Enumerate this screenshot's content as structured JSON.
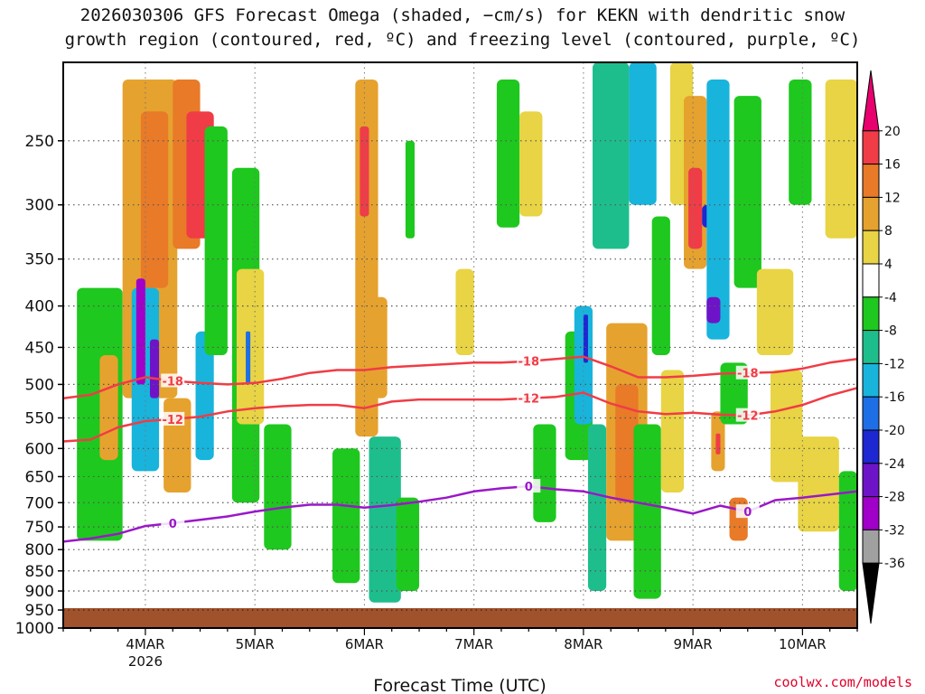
{
  "title_line1": "2026030306 GFS Forecast Omega (shaded, −cm/s) for KEKN with dendritic snow",
  "title_line2": "growth region (contoured, red, ºC) and freezing level (contoured, purple, ºC)",
  "credit": "coolwx.com/models",
  "chart_data": {
    "type": "heatmap",
    "title": "2026030306 GFS Forecast Omega (shaded, −cm/s) for KEKN with dendritic snow growth region (contoured, red, ºC) and freezing level (contoured, purple, ºC)",
    "xlabel": "Forecast Time (UTC)",
    "ylabel": "",
    "x_unit": "forecast hour",
    "xlim": [
      0,
      174
    ],
    "x_ticks": [
      {
        "hour": 18,
        "label": "4MAR",
        "sublabel": "2026"
      },
      {
        "hour": 42,
        "label": "5MAR"
      },
      {
        "hour": 66,
        "label": "6MAR"
      },
      {
        "hour": 90,
        "label": "7MAR"
      },
      {
        "hour": 114,
        "label": "8MAR"
      },
      {
        "hour": 138,
        "label": "9MAR"
      },
      {
        "hour": 162,
        "label": "10MAR"
      }
    ],
    "y_unit": "hPa",
    "ylim": [
      1000,
      200
    ],
    "y_ticks": [
      "250",
      "300",
      "350",
      "400",
      "450",
      "500",
      "550",
      "600",
      "650",
      "700",
      "750",
      "800",
      "850",
      "900",
      "950",
      "1000"
    ],
    "grid": true,
    "colorbar": {
      "labels": [
        "20",
        "16",
        "12",
        "8",
        "4",
        "-4",
        "-8",
        "-12",
        "-16",
        "-20",
        "-24",
        "-28",
        "-32",
        "-36"
      ],
      "colors": [
        "#e8006e",
        "#f03c46",
        "#e87a28",
        "#e6a22e",
        "#e8d444",
        "#ffffff",
        "#1ec81e",
        "#1ebe8c",
        "#18b4dc",
        "#1e6ee6",
        "#1e28d2",
        "#6e14c8",
        "#a000c8",
        "#a0a0a0",
        "#000000"
      ]
    },
    "ground_level_hpa": 945,
    "ground_color": "#a0522d",
    "contours": [
      {
        "name": "-18 C",
        "label": "-18",
        "color": "#f03c46",
        "points": [
          [
            0,
            520
          ],
          [
            6,
            515
          ],
          [
            12,
            500
          ],
          [
            18,
            490
          ],
          [
            24,
            495
          ],
          [
            30,
            498
          ],
          [
            36,
            500
          ],
          [
            42,
            498
          ],
          [
            48,
            492
          ],
          [
            54,
            484
          ],
          [
            60,
            480
          ],
          [
            66,
            480
          ],
          [
            72,
            476
          ],
          [
            78,
            474
          ],
          [
            84,
            472
          ],
          [
            90,
            470
          ],
          [
            96,
            470
          ],
          [
            102,
            468
          ],
          [
            108,
            465
          ],
          [
            114,
            462
          ],
          [
            120,
            475
          ],
          [
            126,
            490
          ],
          [
            132,
            490
          ],
          [
            138,
            488
          ],
          [
            144,
            485
          ],
          [
            150,
            484
          ],
          [
            156,
            483
          ],
          [
            162,
            478
          ],
          [
            168,
            470
          ],
          [
            174,
            465
          ]
        ]
      },
      {
        "name": "-12 C",
        "label": "-12",
        "color": "#f03c46",
        "points": [
          [
            0,
            588
          ],
          [
            6,
            585
          ],
          [
            12,
            565
          ],
          [
            18,
            555
          ],
          [
            24,
            552
          ],
          [
            30,
            548
          ],
          [
            36,
            540
          ],
          [
            42,
            535
          ],
          [
            48,
            532
          ],
          [
            54,
            530
          ],
          [
            60,
            530
          ],
          [
            66,
            535
          ],
          [
            72,
            525
          ],
          [
            78,
            522
          ],
          [
            84,
            522
          ],
          [
            90,
            522
          ],
          [
            96,
            522
          ],
          [
            102,
            520
          ],
          [
            108,
            518
          ],
          [
            114,
            512
          ],
          [
            120,
            528
          ],
          [
            126,
            540
          ],
          [
            132,
            544
          ],
          [
            138,
            542
          ],
          [
            144,
            545
          ],
          [
            150,
            546
          ],
          [
            156,
            540
          ],
          [
            162,
            530
          ],
          [
            168,
            516
          ],
          [
            174,
            505
          ]
        ]
      },
      {
        "name": "0 C freezing level",
        "label": "0",
        "color": "#9a18c8",
        "points": [
          [
            0,
            782
          ],
          [
            6,
            775
          ],
          [
            12,
            765
          ],
          [
            18,
            748
          ],
          [
            24,
            742
          ],
          [
            30,
            735
          ],
          [
            36,
            728
          ],
          [
            42,
            718
          ],
          [
            48,
            710
          ],
          [
            54,
            704
          ],
          [
            60,
            704
          ],
          [
            66,
            710
          ],
          [
            72,
            705
          ],
          [
            78,
            698
          ],
          [
            84,
            690
          ],
          [
            90,
            678
          ],
          [
            96,
            672
          ],
          [
            102,
            668
          ],
          [
            108,
            674
          ],
          [
            114,
            678
          ],
          [
            120,
            690
          ],
          [
            126,
            700
          ],
          [
            132,
            710
          ],
          [
            138,
            722
          ],
          [
            144,
            706
          ],
          [
            150,
            718
          ],
          [
            156,
            695
          ],
          [
            162,
            690
          ],
          [
            168,
            684
          ],
          [
            174,
            678
          ]
        ]
      }
    ],
    "omega_cells": [
      {
        "t0": 3,
        "t1": 13,
        "p0": 380,
        "p1": 780,
        "v": -6
      },
      {
        "t0": 8,
        "t1": 12,
        "p0": 460,
        "p1": 620,
        "v": 8
      },
      {
        "t0": 13,
        "t1": 25,
        "p0": 210,
        "p1": 520,
        "v": 8
      },
      {
        "t0": 17,
        "t1": 23,
        "p0": 230,
        "p1": 380,
        "v": 14
      },
      {
        "t0": 15,
        "t1": 21,
        "p0": 380,
        "p1": 640,
        "v": -12
      },
      {
        "t0": 16,
        "t1": 18,
        "p0": 370,
        "p1": 500,
        "v": -28
      },
      {
        "t0": 19,
        "t1": 21,
        "p0": 440,
        "p1": 520,
        "v": -24
      },
      {
        "t0": 22,
        "t1": 28,
        "p0": 520,
        "p1": 680,
        "v": 10
      },
      {
        "t0": 24,
        "t1": 30,
        "p0": 210,
        "p1": 340,
        "v": 12
      },
      {
        "t0": 27,
        "t1": 33,
        "p0": 230,
        "p1": 330,
        "v": 17
      },
      {
        "t0": 29,
        "t1": 33,
        "p0": 430,
        "p1": 620,
        "v": -14
      },
      {
        "t0": 31,
        "t1": 36,
        "p0": 240,
        "p1": 460,
        "v": -6
      },
      {
        "t0": 37,
        "t1": 43,
        "p0": 270,
        "p1": 700,
        "v": -5
      },
      {
        "t0": 38,
        "t1": 44,
        "p0": 360,
        "p1": 560,
        "v": 5
      },
      {
        "t0": 40,
        "t1": 41,
        "p0": 430,
        "p1": 500,
        "v": -18
      },
      {
        "t0": 44,
        "t1": 50,
        "p0": 560,
        "p1": 800,
        "v": -5
      },
      {
        "t0": 59,
        "t1": 65,
        "p0": 600,
        "p1": 880,
        "v": -6
      },
      {
        "t0": 64,
        "t1": 69,
        "p0": 210,
        "p1": 580,
        "v": 8
      },
      {
        "t0": 65,
        "t1": 67,
        "p0": 240,
        "p1": 310,
        "v": 18
      },
      {
        "t0": 66,
        "t1": 71,
        "p0": 390,
        "p1": 520,
        "v": 11
      },
      {
        "t0": 67,
        "t1": 74,
        "p0": 580,
        "p1": 930,
        "v": -9
      },
      {
        "t0": 73,
        "t1": 78,
        "p0": 690,
        "p1": 900,
        "v": -6
      },
      {
        "t0": 75,
        "t1": 77,
        "p0": 250,
        "p1": 330,
        "v": -5
      },
      {
        "t0": 86,
        "t1": 90,
        "p0": 360,
        "p1": 460,
        "v": 6
      },
      {
        "t0": 95,
        "t1": 100,
        "p0": 210,
        "p1": 320,
        "v": -6
      },
      {
        "t0": 100,
        "t1": 105,
        "p0": 230,
        "p1": 310,
        "v": 5
      },
      {
        "t0": 103,
        "t1": 108,
        "p0": 560,
        "p1": 740,
        "v": -5
      },
      {
        "t0": 110,
        "t1": 116,
        "p0": 430,
        "p1": 620,
        "v": -5
      },
      {
        "t0": 112,
        "t1": 116,
        "p0": 400,
        "p1": 560,
        "v": -14
      },
      {
        "t0": 114,
        "t1": 115,
        "p0": 410,
        "p1": 470,
        "v": -22
      },
      {
        "t0": 115,
        "t1": 119,
        "p0": 560,
        "p1": 900,
        "v": -10
      },
      {
        "t0": 116,
        "t1": 124,
        "p0": 200,
        "p1": 340,
        "v": -10
      },
      {
        "t0": 119,
        "t1": 128,
        "p0": 420,
        "p1": 780,
        "v": 9
      },
      {
        "t0": 121,
        "t1": 126,
        "p0": 500,
        "p1": 700,
        "v": 13
      },
      {
        "t0": 125,
        "t1": 131,
        "p0": 560,
        "p1": 920,
        "v": -6
      },
      {
        "t0": 124,
        "t1": 130,
        "p0": 200,
        "p1": 300,
        "v": -14
      },
      {
        "t0": 129,
        "t1": 133,
        "p0": 310,
        "p1": 460,
        "v": -6
      },
      {
        "t0": 131,
        "t1": 136,
        "p0": 480,
        "p1": 680,
        "v": 6
      },
      {
        "t0": 133,
        "t1": 138,
        "p0": 200,
        "p1": 300,
        "v": 6
      },
      {
        "t0": 136,
        "t1": 141,
        "p0": 220,
        "p1": 360,
        "v": 11
      },
      {
        "t0": 137,
        "t1": 140,
        "p0": 270,
        "p1": 340,
        "v": 18
      },
      {
        "t0": 140,
        "t1": 143,
        "p0": 300,
        "p1": 320,
        "v": -22
      },
      {
        "t0": 141,
        "t1": 146,
        "p0": 210,
        "p1": 440,
        "v": -12
      },
      {
        "t0": 141,
        "t1": 144,
        "p0": 390,
        "p1": 420,
        "v": -26
      },
      {
        "t0": 142,
        "t1": 145,
        "p0": 540,
        "p1": 640,
        "v": 10
      },
      {
        "t0": 143,
        "t1": 144,
        "p0": 575,
        "p1": 610,
        "v": 16
      },
      {
        "t0": 144,
        "t1": 150,
        "p0": 470,
        "p1": 560,
        "v": -6
      },
      {
        "t0": 146,
        "t1": 150,
        "p0": 690,
        "p1": 780,
        "v": 14
      },
      {
        "t0": 147,
        "t1": 153,
        "p0": 220,
        "p1": 380,
        "v": -6
      },
      {
        "t0": 152,
        "t1": 160,
        "p0": 360,
        "p1": 460,
        "v": 6
      },
      {
        "t0": 155,
        "t1": 162,
        "p0": 480,
        "p1": 660,
        "v": 5
      },
      {
        "t0": 159,
        "t1": 164,
        "p0": 210,
        "p1": 300,
        "v": -6
      },
      {
        "t0": 161,
        "t1": 170,
        "p0": 580,
        "p1": 760,
        "v": 6
      },
      {
        "t0": 167,
        "t1": 174,
        "p0": 210,
        "p1": 330,
        "v": 5
      },
      {
        "t0": 170,
        "t1": 174,
        "p0": 640,
        "p1": 900,
        "v": -6
      }
    ]
  }
}
